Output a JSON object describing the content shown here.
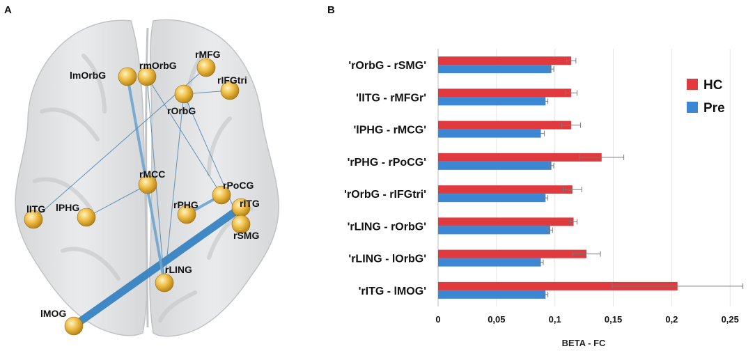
{
  "panels": {
    "a": "A",
    "b": "B"
  },
  "brain": {
    "nodes": [
      {
        "id": "lmOrbG",
        "label": "lmOrbG"
      },
      {
        "id": "rmOrbG",
        "label": "rmOrbG"
      },
      {
        "id": "rMFG",
        "label": "rMFG"
      },
      {
        "id": "rIFGtri",
        "label": "rIFGtri"
      },
      {
        "id": "rOrbG",
        "label": "rOrbG"
      },
      {
        "id": "rMCC",
        "label": "rMCC"
      },
      {
        "id": "rPoCG",
        "label": "rPoCG"
      },
      {
        "id": "rPHG",
        "label": "rPHG"
      },
      {
        "id": "rITG",
        "label": "rITG"
      },
      {
        "id": "lITG",
        "label": "lITG"
      },
      {
        "id": "lPHG",
        "label": "lPHG"
      },
      {
        "id": "rSMG",
        "label": "rSMG"
      },
      {
        "id": "rLING",
        "label": "rLING"
      },
      {
        "id": "lMOG",
        "label": "lMOG"
      }
    ],
    "edges": [
      {
        "from": "rITG",
        "to": "lMOG",
        "strength": "strong"
      },
      {
        "from": "rLING",
        "to": "lmOrbG",
        "strength": "medium"
      },
      {
        "from": "rPHG",
        "to": "rPoCG",
        "strength": "medium"
      },
      {
        "from": "rLING",
        "to": "rOrbG",
        "strength": "weak"
      },
      {
        "from": "rLING",
        "to": "rmOrbG",
        "strength": "weak"
      },
      {
        "from": "rOrbG",
        "to": "rSMG",
        "strength": "weak"
      },
      {
        "from": "lITG",
        "to": "rMFG",
        "strength": "weak"
      },
      {
        "from": "lPHG",
        "to": "rMCC",
        "strength": "weak"
      },
      {
        "from": "rOrbG",
        "to": "rIFGtri",
        "strength": "weak"
      },
      {
        "from": "rmOrbG",
        "to": "rPoCG",
        "strength": "weak"
      }
    ]
  },
  "chart_data": {
    "type": "bar",
    "orientation": "horizontal",
    "categories": [
      "'rOrbG - rSMG'",
      "'lITG - rMFGr'",
      "'lPHG - rMCG'",
      "'rPHG - rPoCG'",
      "'rOrbG - rIFGtri'",
      "'rLING - rOrbG'",
      "'rLING - lOrbG'",
      "'rITG - lMOG'"
    ],
    "series": [
      {
        "name": "HC",
        "color": "#e03a3e",
        "values": [
          0.114,
          0.114,
          0.114,
          0.14,
          0.115,
          0.116,
          0.127,
          0.205
        ],
        "errors": [
          0.004,
          0.005,
          0.008,
          0.019,
          0.008,
          0.003,
          0.012,
          0.056
        ]
      },
      {
        "name": "Pre",
        "color": "#3b87d4",
        "values": [
          0.097,
          0.092,
          0.088,
          0.097,
          0.092,
          0.096,
          0.088,
          0.092
        ],
        "errors": [
          0.002,
          0.002,
          0.003,
          0.002,
          0.002,
          0.002,
          0.002,
          0.002
        ]
      }
    ],
    "xlim": [
      0,
      0.26
    ],
    "xticks": [
      0,
      0.05,
      0.1,
      0.15,
      0.2,
      0.25
    ],
    "xtick_labels": [
      "0",
      "0,05",
      "0,1",
      "0,15",
      "0,2",
      "0,25"
    ],
    "xlabel": "BETA - FC",
    "legend_position": "right",
    "grid": "vertical"
  }
}
